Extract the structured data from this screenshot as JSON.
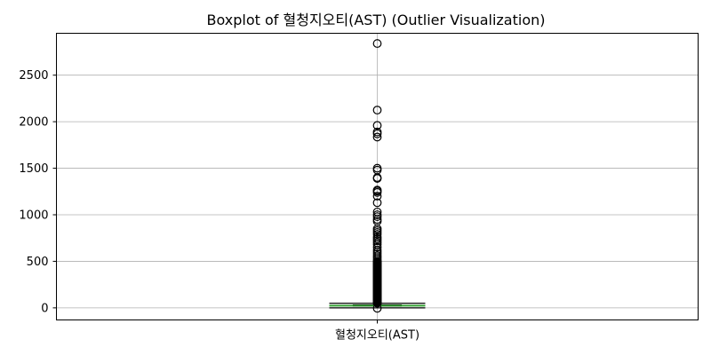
{
  "chart_data": {
    "type": "boxplot",
    "title": "Boxplot of 혈청지오티(AST) (Outlier Visualization)",
    "categories": [
      "혈청지오티(AST)"
    ],
    "xlabel": "",
    "ylabel": "",
    "ylim": [
      -130,
      2950
    ],
    "yticks": [
      0,
      500,
      1000,
      1500,
      2000,
      2500
    ],
    "grid": true,
    "legend": "none",
    "box": {
      "whislo": 0,
      "q1": 19,
      "median": 23,
      "q3": 31,
      "whishi": 49
    },
    "fliers": [
      2840,
      2125,
      1960,
      1890,
      1870,
      1835,
      1500,
      1480,
      1400,
      1390,
      1265,
      1255,
      1240,
      1200,
      1130,
      1030,
      1000,
      980,
      950,
      930,
      850,
      830,
      810,
      790,
      760,
      740,
      720,
      700,
      680,
      650,
      620,
      600,
      580,
      560,
      540,
      520,
      500,
      480,
      460,
      440,
      420,
      400,
      380,
      360,
      340,
      320,
      300,
      280,
      260,
      240,
      220,
      200,
      180,
      160,
      140,
      120,
      100,
      90,
      80,
      70,
      60,
      55,
      52
    ],
    "colors": {
      "median": "#2ca02c",
      "grid": "#b0b0b0"
    }
  }
}
